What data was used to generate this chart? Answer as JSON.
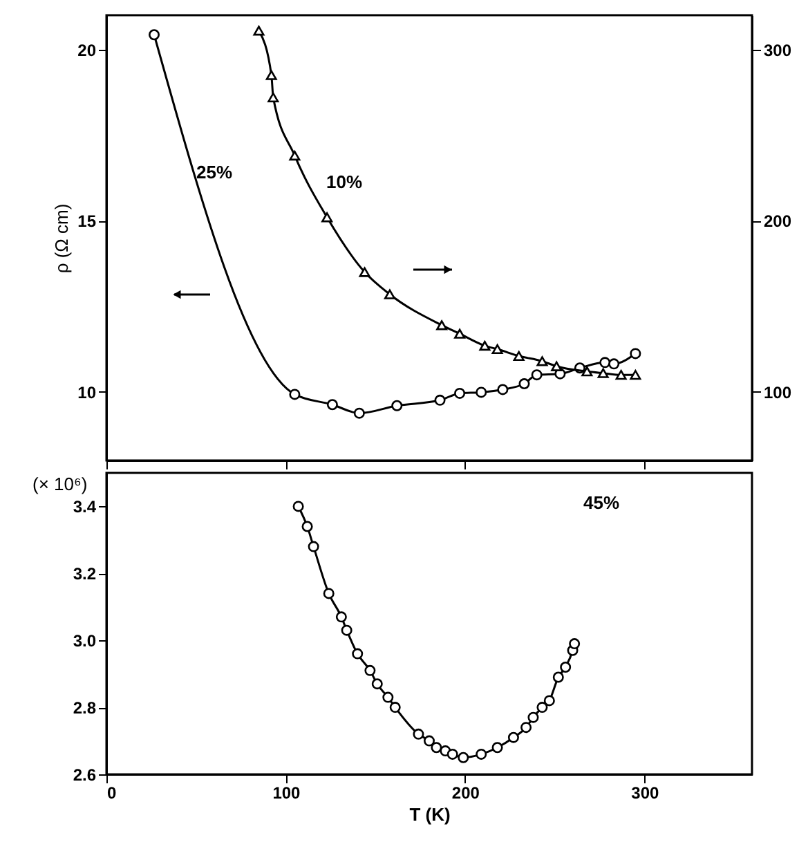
{
  "chart_data": [
    {
      "type": "line",
      "ylabel": "ρ (Ω cm)",
      "xlim": [
        0,
        360
      ],
      "xticks": [
        0,
        100,
        200,
        300
      ],
      "ylim": [
        8,
        21
      ],
      "yticks": [
        10,
        15,
        20
      ],
      "y2lim": [
        60,
        320
      ],
      "y2ticks": [
        100,
        200,
        300
      ],
      "tick_labels": "y",
      "annotations": [
        "25%",
        "10%"
      ],
      "series": [
        {
          "color": "#000000",
          "marker": "circle",
          "x": [
            26.6,
            105,
            126,
            141,
            162,
            186,
            197,
            209,
            221,
            233,
            240,
            253,
            264,
            278,
            283,
            295
          ],
          "values": [
            20.43,
            9.93,
            9.63,
            9.38,
            9.6,
            9.76,
            9.96,
            9.99,
            10.07,
            10.24,
            10.5,
            10.53,
            10.7,
            10.86,
            10.82,
            11.12
          ]
        },
        {
          "color": "#000000",
          "marker": "triangle",
          "axis": "y2",
          "x": [
            85,
            92,
            93,
            105,
            123,
            144,
            158,
            187,
            197,
            211,
            218,
            230,
            243,
            251,
            268,
            277,
            287,
            295
          ],
          "values": [
            311,
            285,
            272,
            238,
            202,
            170,
            157,
            139,
            134,
            127,
            125,
            121,
            118,
            115,
            112,
            111,
            110,
            110
          ]
        }
      ]
    },
    {
      "type": "line",
      "xlabel": "T (K)",
      "ylabel": "(× 10⁶)",
      "xlim": [
        0,
        360
      ],
      "xticks": [
        0,
        100,
        200,
        300
      ],
      "ylim": [
        2.6,
        3.5
      ],
      "yticks": [
        2.6,
        2.8,
        {
          "value": 3.0,
          "label": "3.0"
        },
        3.2,
        3.4
      ],
      "annotations": [
        "45%"
      ],
      "series": [
        {
          "color": "#000000",
          "marker": "circle",
          "x": [
            107,
            112,
            115.5,
            124,
            131,
            134,
            140,
            147,
            151,
            157,
            161,
            174,
            180,
            184,
            189,
            193,
            199,
            209,
            218,
            227,
            234,
            238,
            243,
            247,
            252,
            256,
            260,
            261
          ],
          "values": [
            3.4,
            3.34,
            3.28,
            3.14,
            3.07,
            3.03,
            2.96,
            2.91,
            2.87,
            2.83,
            2.8,
            2.72,
            2.7,
            2.68,
            2.67,
            2.66,
            2.65,
            2.66,
            2.68,
            2.71,
            2.74,
            2.77,
            2.8,
            2.82,
            2.89,
            2.92,
            2.97,
            2.99
          ]
        }
      ]
    }
  ]
}
